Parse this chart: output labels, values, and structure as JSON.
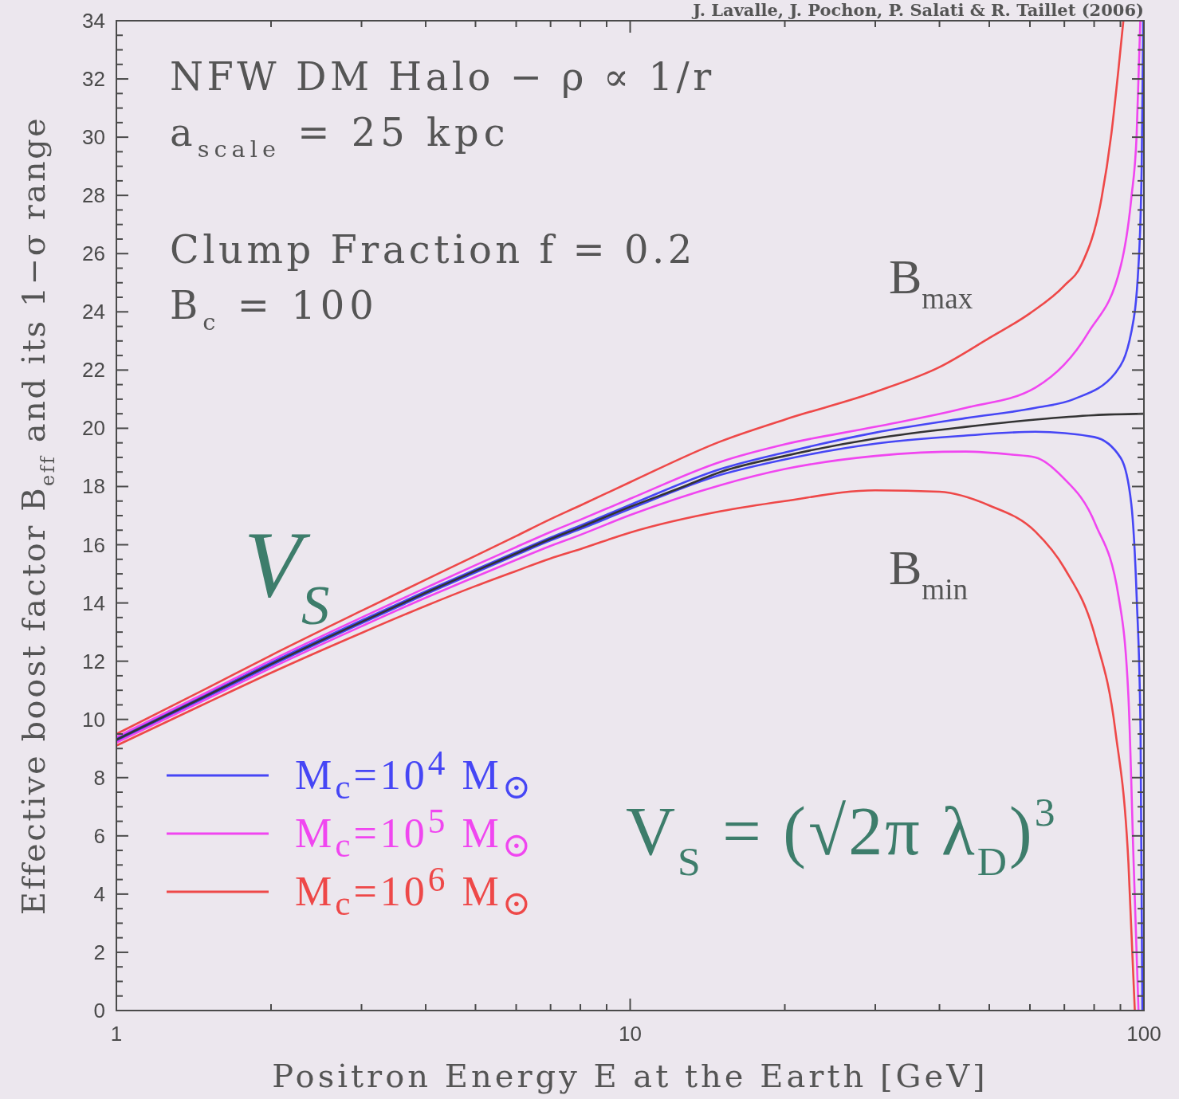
{
  "chart_data": {
    "type": "line",
    "log": "x",
    "legend": "bottom left",
    "xlabel": "Positron Energy E at the Earth [GeV]",
    "ylabel": "Effective boost factor B$_{eff}$ and its 1−σ range",
    "xlim": [
      1,
      100
    ],
    "xticks": [
      1,
      {
        "value": 2,
        "label": null
      },
      {
        "value": 3,
        "label": null
      },
      {
        "value": 4,
        "label": null
      },
      {
        "value": 5,
        "label": null
      },
      {
        "value": 6,
        "label": null
      },
      {
        "value": 7,
        "label": null
      },
      {
        "value": 8,
        "label": null
      },
      {
        "value": 9,
        "label": null
      },
      10,
      {
        "value": 20,
        "label": null
      },
      {
        "value": 30,
        "label": null
      },
      {
        "value": 40,
        "label": null
      },
      {
        "value": 50,
        "label": null
      },
      {
        "value": 60,
        "label": null
      },
      {
        "value": 70,
        "label": null
      },
      {
        "value": 80,
        "label": null
      },
      {
        "value": 90,
        "label": null
      },
      100
    ],
    "ylim": [
      0,
      34
    ],
    "yticks": [
      0,
      {
        "value": 0.5,
        "label": null
      },
      {
        "value": 1,
        "label": null
      },
      {
        "value": 1.5,
        "label": null
      },
      2,
      {
        "value": 2.5,
        "label": null
      },
      {
        "value": 3,
        "label": null
      },
      {
        "value": 3.5,
        "label": null
      },
      4,
      {
        "value": 4.5,
        "label": null
      },
      {
        "value": 5,
        "label": null
      },
      {
        "value": 5.5,
        "label": null
      },
      6,
      {
        "value": 6.5,
        "label": null
      },
      {
        "value": 7,
        "label": null
      },
      {
        "value": 7.5,
        "label": null
      },
      8,
      {
        "value": 8.5,
        "label": null
      },
      {
        "value": 9,
        "label": null
      },
      {
        "value": 9.5,
        "label": null
      },
      10,
      {
        "value": 10.5,
        "label": null
      },
      {
        "value": 11,
        "label": null
      },
      {
        "value": 11.5,
        "label": null
      },
      12,
      {
        "value": 12.5,
        "label": null
      },
      {
        "value": 13,
        "label": null
      },
      {
        "value": 13.5,
        "label": null
      },
      14,
      {
        "value": 14.5,
        "label": null
      },
      {
        "value": 15,
        "label": null
      },
      {
        "value": 15.5,
        "label": null
      },
      16,
      {
        "value": 16.5,
        "label": null
      },
      {
        "value": 17,
        "label": null
      },
      {
        "value": 17.5,
        "label": null
      },
      18,
      {
        "value": 18.5,
        "label": null
      },
      {
        "value": 19,
        "label": null
      },
      {
        "value": 19.5,
        "label": null
      },
      20,
      {
        "value": 20.5,
        "label": null
      },
      {
        "value": 21,
        "label": null
      },
      {
        "value": 21.5,
        "label": null
      },
      22,
      {
        "value": 22.5,
        "label": null
      },
      {
        "value": 23,
        "label": null
      },
      {
        "value": 23.5,
        "label": null
      },
      24,
      {
        "value": 24.5,
        "label": null
      },
      {
        "value": 25,
        "label": null
      },
      {
        "value": 25.5,
        "label": null
      },
      26,
      {
        "value": 26.5,
        "label": null
      },
      {
        "value": 27,
        "label": null
      },
      {
        "value": 27.5,
        "label": null
      },
      28,
      {
        "value": 28.5,
        "label": null
      },
      {
        "value": 29,
        "label": null
      },
      {
        "value": 29.5,
        "label": null
      },
      30,
      {
        "value": 30.5,
        "label": null
      },
      {
        "value": 31,
        "label": null
      },
      {
        "value": 31.5,
        "label": null
      },
      32,
      {
        "value": 32.5,
        "label": null
      },
      {
        "value": 33,
        "label": null
      },
      {
        "value": 33.5,
        "label": null
      },
      34
    ],
    "annotations": [
      "J. Lavalle, J. Pochon, P. Salati & R. Taillet (2006)",
      "NFW DM Halo − ρ ∝ 1/r",
      "a$_{scale}$ = 25 kpc",
      "Clump Fraction f = 0.2",
      "B$_{c}$ = 100",
      "V$_{S}$",
      "V$_{S}$ = (√2π λ$_{D}$)$^{3}$",
      "B$_{max}$",
      "B$_{min}$"
    ],
    "series": [
      {
        "name": "M$_{c}$=10$^{4}$ M$_{⊙}$",
        "color": "#4646f5",
        "x": [
          1,
          1.5,
          2,
          3,
          4,
          5,
          6,
          7,
          8,
          10,
          15,
          20,
          30,
          45,
          61.5,
          73,
          88,
          94.5,
          97.6,
          99,
          99.7
        ],
        "values": [
          9.35,
          10.87,
          11.95,
          13.4,
          14.4,
          15.15,
          15.75,
          16.25,
          16.66,
          17.37,
          18.6,
          19.17,
          19.85,
          20.35,
          20.7,
          21.0,
          21.9,
          23.3,
          25.6,
          29,
          34
        ]
      },
      {
        "color": "#4646f5",
        "x": [
          1,
          1.5,
          2,
          3,
          4,
          5,
          6,
          7,
          8,
          10,
          15,
          20,
          30,
          45,
          61.5,
          80,
          90.2,
          94.5,
          96.8,
          98.5,
          99.3
        ],
        "values": [
          9.25,
          10.77,
          11.85,
          13.3,
          14.3,
          15.05,
          15.65,
          16.15,
          16.54,
          17.23,
          18.4,
          18.93,
          19.47,
          19.75,
          19.88,
          19.7,
          18.97,
          17.4,
          14.2,
          9.6,
          0
        ]
      },
      {
        "name": "M$_{c}$=10$^{5}$ M$_{⊙}$",
        "color": "#f046f0",
        "x": [
          1,
          1.5,
          2,
          3,
          4,
          5,
          6,
          7,
          8,
          10,
          15,
          20,
          30,
          45,
          61.5,
          78,
          90.2,
          94.5,
          96.8,
          98.4
        ],
        "values": [
          9.4,
          10.93,
          12.03,
          13.5,
          14.52,
          15.3,
          15.92,
          16.44,
          16.86,
          17.58,
          18.85,
          19.45,
          20.05,
          20.7,
          21.4,
          23.3,
          25.6,
          27.9,
          30.1,
          34
        ]
      },
      {
        "color": "#f046f0",
        "x": [
          1,
          1.5,
          2,
          3,
          4,
          5,
          6,
          7,
          8,
          10,
          15,
          20,
          30,
          45,
          55,
          61.5,
          69.2,
          80.5,
          89.3,
          93.3,
          95.5,
          97.6
        ],
        "values": [
          9.2,
          10.7,
          11.77,
          13.2,
          14.18,
          14.9,
          15.48,
          15.96,
          16.34,
          17.02,
          18.05,
          18.6,
          19.05,
          19.2,
          19.1,
          19.0,
          18.35,
          16.7,
          14.2,
          10.76,
          5.06,
          0
        ]
      },
      {
        "name": "M$_{c}$=10$^{6}$ M$_{⊙}$",
        "color": "#ee4848",
        "x": [
          1,
          1.5,
          2,
          3,
          4,
          5,
          6,
          7,
          8,
          10,
          15,
          20,
          30,
          40,
          50,
          60,
          70,
          75.5,
          82.7,
          86.4,
          89.3,
          91.2
        ],
        "values": [
          9.5,
          11.07,
          12.2,
          13.73,
          14.8,
          15.62,
          16.3,
          16.88,
          17.35,
          18.15,
          19.55,
          20.3,
          21.25,
          22.1,
          23.1,
          23.95,
          24.9,
          25.6,
          27.9,
          30.1,
          32.4,
          34
        ]
      },
      {
        "color": "#ee4848",
        "x": [
          1,
          1.5,
          2,
          3,
          4,
          5,
          6,
          7,
          8,
          10,
          15,
          20,
          30,
          40,
          50,
          61.5,
          70,
          80.5,
          88,
          93.3,
          96
        ],
        "values": [
          9.1,
          10.57,
          11.6,
          12.97,
          13.9,
          14.58,
          15.1,
          15.53,
          15.85,
          16.42,
          17.15,
          17.5,
          17.87,
          17.82,
          17.35,
          16.45,
          15.2,
          12.8,
          9.6,
          5.06,
          0
        ]
      },
      {
        "color": "#333333",
        "x": [
          1,
          1.5,
          2,
          3,
          4,
          5,
          6,
          7,
          8,
          10,
          12.5,
          15,
          20,
          30,
          45,
          61.5,
          80,
          100
        ],
        "values": [
          9.3,
          10.82,
          11.9,
          13.35,
          14.35,
          15.1,
          15.7,
          16.2,
          16.6,
          17.3,
          17.95,
          18.5,
          19.05,
          19.65,
          20.05,
          20.3,
          20.45,
          20.5
        ]
      }
    ]
  }
}
